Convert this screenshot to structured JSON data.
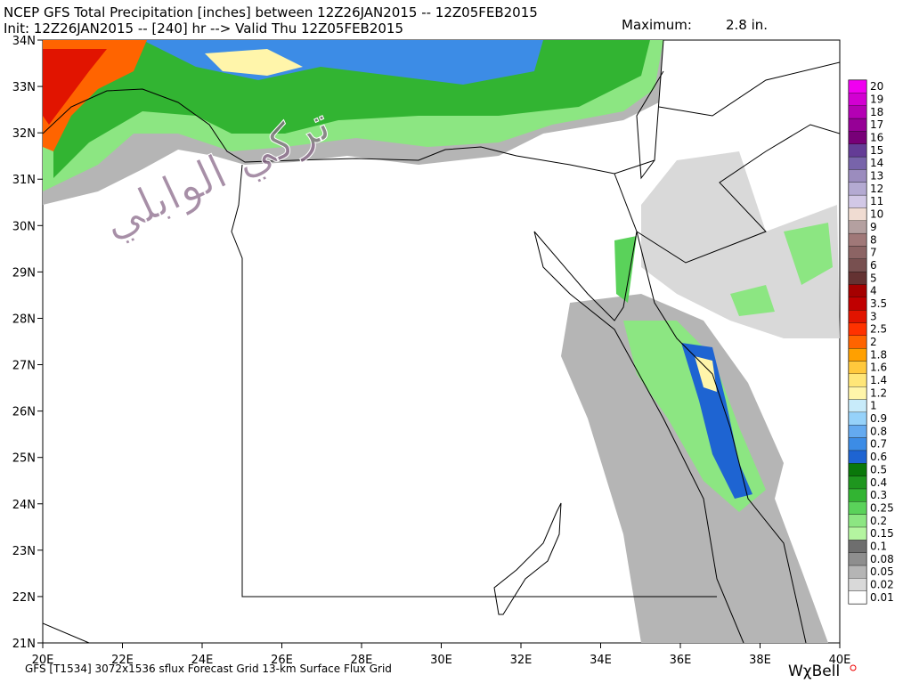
{
  "header": {
    "title": "NCEP GFS Total Precipitation [inches] between 12Z26JAN2015 -- 12Z05FEB2015",
    "subtitle": "Init: 12Z26JAN2015 -- [240] hr --> Valid Thu 12Z05FEB2015",
    "maximum_label": "Maximum:",
    "maximum": "2.8 in."
  },
  "map": {
    "watermark": "تركي الوابلي",
    "lon_ticks": [
      {
        "value": 20,
        "label": "20E"
      },
      {
        "value": 22,
        "label": "22E"
      },
      {
        "value": 24,
        "label": "24E"
      },
      {
        "value": 26,
        "label": "26E"
      },
      {
        "value": 28,
        "label": "28E"
      },
      {
        "value": 30,
        "label": "30E"
      },
      {
        "value": 32,
        "label": "32E"
      },
      {
        "value": 34,
        "label": "34E"
      },
      {
        "value": 36,
        "label": "36E"
      },
      {
        "value": 38,
        "label": "38E"
      },
      {
        "value": 40,
        "label": "40E"
      }
    ],
    "lat_ticks": [
      {
        "value": 21,
        "label": "21N"
      },
      {
        "value": 22,
        "label": "22N"
      },
      {
        "value": 23,
        "label": "23N"
      },
      {
        "value": 24,
        "label": "24N"
      },
      {
        "value": 25,
        "label": "25N"
      },
      {
        "value": 26,
        "label": "26N"
      },
      {
        "value": 27,
        "label": "27N"
      },
      {
        "value": 28,
        "label": "28N"
      },
      {
        "value": 29,
        "label": "29N"
      },
      {
        "value": 30,
        "label": "30N"
      },
      {
        "value": 31,
        "label": "31N"
      },
      {
        "value": 32,
        "label": "32N"
      },
      {
        "value": 33,
        "label": "33N"
      },
      {
        "value": 34,
        "label": "34N"
      }
    ]
  },
  "colorbar": {
    "levels": [
      0.01,
      0.02,
      0.05,
      0.08,
      0.1,
      0.15,
      0.2,
      0.25,
      0.3,
      0.4,
      0.5,
      0.6,
      0.7,
      0.8,
      0.9,
      1,
      1.2,
      1.4,
      1.6,
      1.8,
      2,
      2.5,
      3,
      3.5,
      4,
      5,
      6,
      7,
      8,
      9,
      10,
      11,
      12,
      13,
      14,
      15,
      16,
      17,
      18,
      19,
      20
    ],
    "colors": [
      "#ffffff",
      "#d9d9d9",
      "#b5b5b5",
      "#8e8e8e",
      "#6e6e6e",
      "#b4f5a0",
      "#8ce682",
      "#5ad25a",
      "#32b432",
      "#1e961e",
      "#0a780a",
      "#1e64d2",
      "#3c8ce6",
      "#64aaf0",
      "#96d2fa",
      "#c8ebfa",
      "#fff5aa",
      "#ffe678",
      "#ffc83c",
      "#ffa000",
      "#ff6400",
      "#ff3200",
      "#e11400",
      "#c00000",
      "#a50000",
      "#643232",
      "#785050",
      "#8c6464",
      "#a07878",
      "#b4a0a0",
      "#f0dcd2",
      "#d2c8e6",
      "#b4aad2",
      "#9b8cbe",
      "#7864aa",
      "#643c96",
      "#780078",
      "#960096",
      "#b400b4",
      "#d200d2",
      "#f000f0"
    ]
  },
  "footer": {
    "source": "GFS [T1534] 3072x1536 sflux Forecast Grid 13-km Surface Flux Grid",
    "logo": "WχBell"
  }
}
